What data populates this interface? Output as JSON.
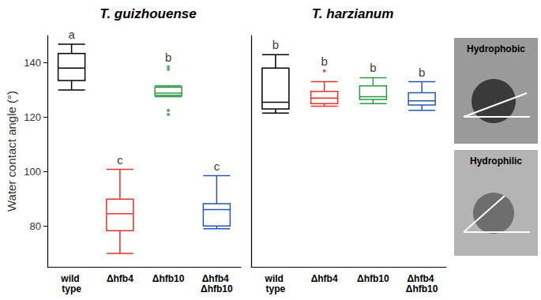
{
  "chart_data": [
    {
      "type": "boxplot",
      "title": "T. guizhouense",
      "y_label": "Water contact angle (°)",
      "categories": [
        "wild type",
        "Δhfb4",
        "Δhfb10",
        "Δhfb4 Δhfb10"
      ],
      "values": [
        [
          130,
          133.5,
          138,
          143.4,
          146.8
        ],
        [
          69.9,
          78.3,
          84.5,
          89.9,
          100.8
        ],
        [
          127.5,
          128,
          128.8,
          131,
          131.5
        ],
        [
          79,
          80,
          86,
          88.2,
          98.5
        ]
      ],
      "outliers": [
        [],
        [],
        [
          138.5,
          137.5,
          122.5,
          121
        ],
        []
      ],
      "annotations": [
        "a",
        "c",
        "b",
        "c"
      ],
      "colors": [
        "#000000",
        "#e8322b",
        "#2e9a45",
        "#2458b5"
      ],
      "ylim": [
        65,
        150
      ],
      "yticks": [
        80,
        100,
        120,
        140
      ],
      "grid": false
    },
    {
      "type": "boxplot",
      "title": "T. harzianum",
      "categories": [
        "wild type",
        "Δhfb4",
        "Δhfb10",
        "Δhfb4 Δhfb10"
      ],
      "values": [
        [
          121.5,
          123,
          125.5,
          138,
          143
        ],
        [
          124,
          125,
          127,
          129.5,
          133
        ],
        [
          125,
          126.5,
          127.5,
          131.5,
          134.5
        ],
        [
          122.5,
          124.5,
          126,
          129,
          133
        ]
      ],
      "outliers": [
        [],
        [
          137
        ],
        [],
        []
      ],
      "annotations": [
        "b",
        "b",
        "b",
        "b"
      ],
      "colors": [
        "#000000",
        "#e8322b",
        "#2e9a45",
        "#2458b5"
      ],
      "ylim": [
        65,
        150
      ],
      "tick_labels": "x",
      "grid": false
    }
  ],
  "insets": [
    "Hydrophobic",
    "Hydrophilic"
  ]
}
